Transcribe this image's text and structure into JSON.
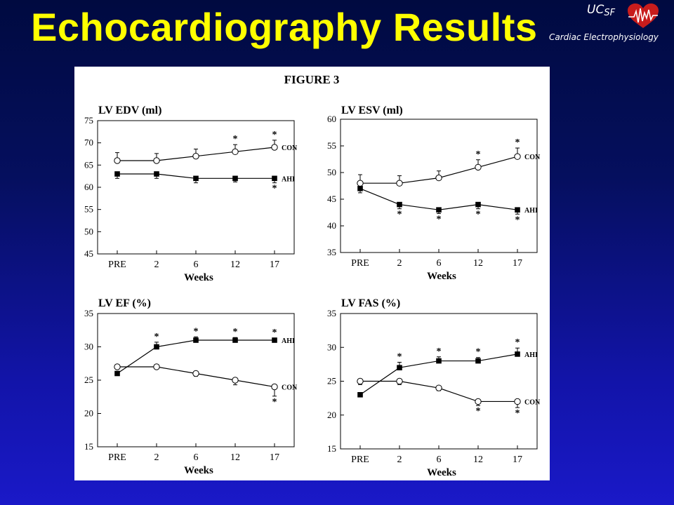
{
  "slide": {
    "title": "Echocardiography Results",
    "logo": {
      "ucsf_main": "UC",
      "ucsf_sub": "SF",
      "subtitle": "Cardiac Electrophysiology"
    }
  },
  "figure": {
    "title": "FIGURE 3"
  },
  "chart_data": [
    {
      "type": "line",
      "title": "LV EDV (ml)",
      "xlabel": "Weeks",
      "categories": [
        "PRE",
        "2",
        "6",
        "12",
        "17"
      ],
      "ylim": [
        45,
        75
      ],
      "yticks": [
        45,
        50,
        55,
        60,
        65,
        70,
        75
      ],
      "series": [
        {
          "name": "CON",
          "marker": "open-circle",
          "values": [
            66,
            66,
            67,
            68,
            69
          ],
          "err": [
            1.8,
            1.6,
            1.6,
            1.6,
            1.6
          ],
          "err_dir": "up",
          "sig": [
            false,
            false,
            false,
            true,
            true
          ],
          "sig_pos": "above"
        },
        {
          "name": "AHI",
          "marker": "filled-square",
          "values": [
            63,
            63,
            62,
            62,
            62
          ],
          "err": [
            1.0,
            1.0,
            1.0,
            0.8,
            1.0
          ],
          "err_dir": "down",
          "sig": [
            false,
            false,
            false,
            false,
            true
          ],
          "sig_pos": "below"
        }
      ]
    },
    {
      "type": "line",
      "title": "LV ESV (ml)",
      "xlabel": "Weeks",
      "categories": [
        "PRE",
        "2",
        "6",
        "12",
        "17"
      ],
      "ylim": [
        35,
        60
      ],
      "yticks": [
        35,
        40,
        45,
        50,
        55,
        60
      ],
      "series": [
        {
          "name": "CON",
          "marker": "open-circle",
          "values": [
            48,
            48,
            49,
            51,
            53
          ],
          "err": [
            1.6,
            1.4,
            1.3,
            1.4,
            1.6
          ],
          "err_dir": "up",
          "sig": [
            false,
            false,
            false,
            true,
            true
          ],
          "sig_pos": "above"
        },
        {
          "name": "AHI",
          "marker": "filled-square",
          "values": [
            47,
            44,
            43,
            44,
            43
          ],
          "err": [
            0.8,
            0.8,
            0.7,
            0.8,
            0.8
          ],
          "err_dir": "down",
          "sig": [
            false,
            true,
            true,
            true,
            true
          ],
          "sig_pos": "below"
        }
      ]
    },
    {
      "type": "line",
      "title": "LV EF (%)",
      "xlabel": "Weeks",
      "categories": [
        "PRE",
        "2",
        "6",
        "12",
        "17"
      ],
      "ylim": [
        15,
        35
      ],
      "yticks": [
        15,
        20,
        25,
        30,
        35
      ],
      "series": [
        {
          "name": "AHI",
          "marker": "filled-square",
          "values": [
            26,
            30,
            31,
            31,
            31
          ],
          "err": [
            0.3,
            0.7,
            0.5,
            0.4,
            0.3
          ],
          "err_dir": "up",
          "sig": [
            false,
            true,
            true,
            true,
            true
          ],
          "sig_pos": "above"
        },
        {
          "name": "CON",
          "marker": "open-circle",
          "values": [
            27,
            27,
            26,
            25,
            24
          ],
          "err": [
            0.3,
            0.3,
            0.4,
            0.7,
            1.4
          ],
          "err_dir": "down",
          "sig": [
            false,
            false,
            false,
            false,
            true
          ],
          "sig_pos": "below"
        }
      ]
    },
    {
      "type": "line",
      "title": "LV FAS (%)",
      "xlabel": "Weeks",
      "categories": [
        "PRE",
        "2",
        "6",
        "12",
        "17"
      ],
      "ylim": [
        15,
        35
      ],
      "yticks": [
        15,
        20,
        25,
        30,
        35
      ],
      "series": [
        {
          "name": "AHI",
          "marker": "filled-square",
          "values": [
            23,
            27,
            28,
            28,
            29
          ],
          "err": [
            0.3,
            0.8,
            0.6,
            0.5,
            0.9
          ],
          "err_dir": "up",
          "sig": [
            false,
            true,
            true,
            true,
            true
          ],
          "sig_pos": "above"
        },
        {
          "name": "CON",
          "marker": "open-circle",
          "values": [
            25,
            25,
            24,
            22,
            22
          ],
          "err": [
            0.5,
            0.5,
            0.4,
            0.6,
            0.9
          ],
          "err_dir": "down",
          "sig": [
            false,
            false,
            false,
            true,
            true
          ],
          "sig_pos": "below"
        }
      ]
    }
  ]
}
